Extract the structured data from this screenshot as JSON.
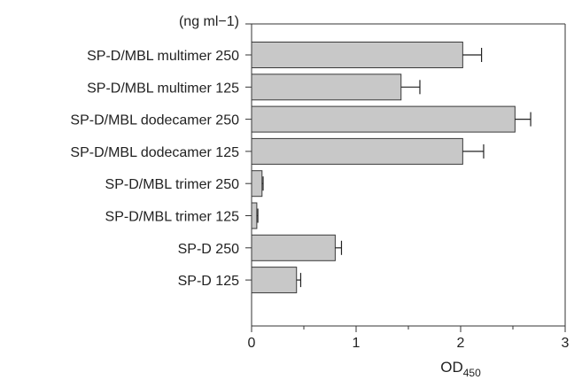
{
  "chart_data": {
    "type": "bar",
    "orientation": "horizontal",
    "unit_label": "(ng ml−1)",
    "categories": [
      "SP-D/MBL multimer 250",
      "SP-D/MBL multimer 125",
      "SP-D/MBL dodecamer 250",
      "SP-D/MBL dodecamer 125",
      "SP-D/MBL trimer 250",
      "SP-D/MBL trimer 125",
      "SP-D 250",
      "SP-D 125"
    ],
    "values": [
      2.02,
      1.43,
      2.52,
      2.02,
      0.1,
      0.05,
      0.8,
      0.43
    ],
    "errors": [
      0.18,
      0.18,
      0.15,
      0.2,
      0.01,
      0.01,
      0.06,
      0.04
    ],
    "xlabel_main": "OD",
    "xlabel_sub": "450",
    "xticks": [
      "0",
      "1",
      "2",
      "3"
    ],
    "xlim": [
      0,
      3
    ],
    "grid": false,
    "bar_color": "#c8c8c8",
    "bar_edge_color": "#3a3a3a"
  }
}
